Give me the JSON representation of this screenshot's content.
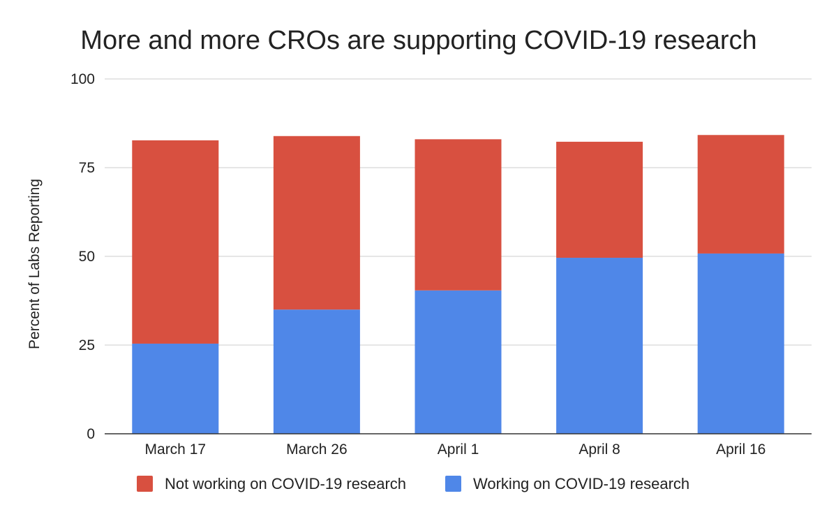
{
  "chart_data": {
    "type": "bar",
    "stacked": true,
    "title": "More and more CROs are supporting COVID-19 research",
    "xlabel": "",
    "ylabel": "Percent of Labs Reporting",
    "categories": [
      "March 17",
      "March 26",
      "April 1",
      "April 8",
      "April 16"
    ],
    "series": [
      {
        "name": "Working on COVID-19 research",
        "color": "#4f87e8",
        "values": [
          25.4,
          35.0,
          40.4,
          49.6,
          50.8
        ]
      },
      {
        "name": "Not working on COVID-19 research",
        "color": "#d85040",
        "values": [
          57.3,
          48.9,
          42.6,
          32.7,
          33.4
        ]
      }
    ],
    "ylim": [
      0,
      100
    ],
    "yticks": [
      "0",
      "25",
      "50",
      "75",
      "100"
    ],
    "ytick_values": [
      0,
      25,
      50,
      75,
      100
    ],
    "grid": true,
    "legend_position": "bottom",
    "legend_order": [
      "Not working on COVID-19 research",
      "Working on COVID-19 research"
    ]
  }
}
